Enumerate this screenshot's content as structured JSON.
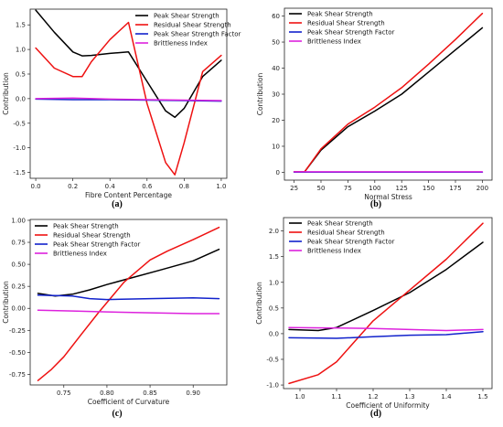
{
  "chart_data": [
    {
      "type": "line",
      "caption": "(a)",
      "xlabel": "Fibre Content Percentage",
      "ylabel": "Contribution",
      "xlim": [
        -0.03,
        1.03
      ],
      "ylim": [
        -1.62,
        1.82
      ],
      "xticks": [
        "0.0",
        "0.2",
        "0.4",
        "0.6",
        "0.8",
        "1.0"
      ],
      "yticks": [
        "-1.5",
        "-1.0",
        "-0.5",
        "0.0",
        "0.5",
        "1.0",
        "1.5"
      ],
      "legend_position": "top-right",
      "grid": false,
      "series": [
        {
          "name": "Peak Shear Strength",
          "color": "#000000",
          "x": [
            0.0,
            0.1,
            0.2,
            0.25,
            0.3,
            0.4,
            0.5,
            0.6,
            0.7,
            0.75,
            0.8,
            0.9,
            1.0
          ],
          "y": [
            1.8,
            1.35,
            0.95,
            0.87,
            0.88,
            0.92,
            0.95,
            0.35,
            -0.25,
            -0.38,
            -0.2,
            0.45,
            0.78
          ]
        },
        {
          "name": "Residual Shear Strength",
          "color": "#ee1111",
          "x": [
            0.0,
            0.1,
            0.2,
            0.25,
            0.3,
            0.4,
            0.5,
            0.6,
            0.7,
            0.75,
            0.8,
            0.9,
            1.0
          ],
          "y": [
            1.03,
            0.62,
            0.45,
            0.45,
            0.75,
            1.2,
            1.55,
            -0.1,
            -1.3,
            -1.55,
            -0.9,
            0.55,
            0.88
          ]
        },
        {
          "name": "Peak Shear Strength Factor",
          "color": "#1122cc",
          "x": [
            0.0,
            0.2,
            0.4,
            0.6,
            0.8,
            1.0
          ],
          "y": [
            -0.01,
            -0.02,
            -0.02,
            -0.03,
            -0.04,
            -0.05
          ]
        },
        {
          "name": "Brittleness Index",
          "color": "#dd22dd",
          "x": [
            0.0,
            0.2,
            0.4,
            0.6,
            0.8,
            1.0
          ],
          "y": [
            0.0,
            0.01,
            -0.01,
            -0.02,
            -0.03,
            -0.04
          ]
        }
      ]
    },
    {
      "type": "line",
      "caption": "(b)",
      "xlabel": "Normal Stress",
      "ylabel": "Contribution",
      "xlim": [
        16,
        209
      ],
      "ylim": [
        -3,
        63
      ],
      "xticks": [
        "25",
        "50",
        "75",
        "100",
        "125",
        "150",
        "175",
        "200"
      ],
      "yticks": [
        "0",
        "10",
        "20",
        "30",
        "40",
        "50",
        "60"
      ],
      "legend_position": "top-left",
      "grid": false,
      "series": [
        {
          "name": "Peak Shear Strength",
          "color": "#000000",
          "x": [
            25,
            35,
            50,
            75,
            100,
            125,
            150,
            175,
            200
          ],
          "y": [
            0.2,
            0.3,
            8.5,
            17.5,
            23.5,
            30.0,
            38.5,
            47.0,
            55.5
          ]
        },
        {
          "name": "Residual Shear Strength",
          "color": "#ee1111",
          "x": [
            25,
            35,
            50,
            75,
            100,
            125,
            150,
            175,
            200
          ],
          "y": [
            0.2,
            0.3,
            9.0,
            18.5,
            25.0,
            32.5,
            41.5,
            51.0,
            61.0
          ]
        },
        {
          "name": "Peak Shear Strength Factor",
          "color": "#1122cc",
          "x": [
            25,
            200
          ],
          "y": [
            0.1,
            0.1
          ]
        },
        {
          "name": "Brittleness Index",
          "color": "#dd22dd",
          "x": [
            25,
            200
          ],
          "y": [
            0.2,
            0.2
          ]
        }
      ]
    },
    {
      "type": "line",
      "caption": "(c)",
      "xlabel": "Coefficient of Curvature",
      "ylabel": "Contribution",
      "xlim": [
        0.711,
        0.939
      ],
      "ylim": [
        -0.87,
        1.01
      ],
      "xticks": [
        "0.75",
        "0.80",
        "0.85",
        "0.90"
      ],
      "yticks": [
        "-0.75",
        "-0.50",
        "-0.25",
        "0.00",
        "0.25",
        "0.50",
        "0.75",
        "1.00"
      ],
      "legend_position": "top-left",
      "grid": false,
      "series": [
        {
          "name": "Peak Shear Strength",
          "color": "#000000",
          "x": [
            0.72,
            0.74,
            0.76,
            0.78,
            0.8,
            0.83,
            0.86,
            0.9,
            0.93
          ],
          "y": [
            0.17,
            0.14,
            0.16,
            0.21,
            0.27,
            0.35,
            0.43,
            0.54,
            0.67
          ]
        },
        {
          "name": "Residual Shear Strength",
          "color": "#ee1111",
          "x": [
            0.72,
            0.735,
            0.75,
            0.77,
            0.79,
            0.82,
            0.85,
            0.87,
            0.9,
            0.93
          ],
          "y": [
            -0.82,
            -0.7,
            -0.55,
            -0.3,
            -0.05,
            0.3,
            0.55,
            0.65,
            0.78,
            0.92
          ]
        },
        {
          "name": "Peak Shear Strength Factor",
          "color": "#1122cc",
          "x": [
            0.72,
            0.76,
            0.78,
            0.8,
            0.85,
            0.9,
            0.93
          ],
          "y": [
            0.15,
            0.14,
            0.11,
            0.1,
            0.11,
            0.12,
            0.11
          ]
        },
        {
          "name": "Brittleness Index",
          "color": "#dd22dd",
          "x": [
            0.72,
            0.76,
            0.8,
            0.85,
            0.9,
            0.93
          ],
          "y": [
            -0.02,
            -0.03,
            -0.04,
            -0.05,
            -0.06,
            -0.06
          ]
        }
      ]
    },
    {
      "type": "line",
      "caption": "(d)",
      "xlabel": "Coefficient of Uniformity",
      "ylabel": "Contribution",
      "xlim": [
        0.955,
        1.525
      ],
      "ylim": [
        -1.07,
        2.26
      ],
      "xticks": [
        "1.0",
        "1.1",
        "1.2",
        "1.3",
        "1.4",
        "1.5"
      ],
      "yticks": [
        "-1.0",
        "-0.5",
        "0.0",
        "0.5",
        "1.0",
        "1.5",
        "2.0"
      ],
      "legend_position": "top-left",
      "grid": false,
      "series": [
        {
          "name": "Peak Shear Strength",
          "color": "#000000",
          "x": [
            0.97,
            1.05,
            1.1,
            1.2,
            1.3,
            1.4,
            1.5
          ],
          "y": [
            0.08,
            0.06,
            0.12,
            0.45,
            0.8,
            1.25,
            1.78
          ]
        },
        {
          "name": "Residual Shear Strength",
          "color": "#ee1111",
          "x": [
            0.97,
            1.05,
            1.1,
            1.15,
            1.2,
            1.3,
            1.4,
            1.5
          ],
          "y": [
            -0.97,
            -0.8,
            -0.55,
            -0.15,
            0.25,
            0.85,
            1.45,
            2.15
          ]
        },
        {
          "name": "Peak Shear Strength Factor",
          "color": "#1122cc",
          "x": [
            0.97,
            1.1,
            1.2,
            1.3,
            1.4,
            1.5
          ],
          "y": [
            -0.08,
            -0.09,
            -0.06,
            -0.03,
            -0.02,
            0.04
          ]
        },
        {
          "name": "Brittleness Index",
          "color": "#dd22dd",
          "x": [
            0.97,
            1.1,
            1.2,
            1.3,
            1.4,
            1.5
          ],
          "y": [
            0.12,
            0.11,
            0.1,
            0.08,
            0.06,
            0.08
          ]
        }
      ]
    }
  ]
}
